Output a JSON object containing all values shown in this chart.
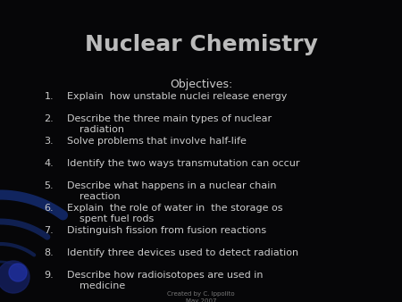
{
  "title": "Nuclear Chemistry",
  "objectives_header": "Objectives:",
  "objectives": [
    "Explain  how unstable nuclei release energy",
    "Describe the three main types of nuclear\n    radiation",
    "Solve problems that involve half-life",
    "Identify the two ways transmutation can occur",
    "Describe what happens in a nuclear chain\n    reaction",
    "Explain  the role of water in  the storage os\n    spent fuel rods",
    "Distinguish fission from fusion reactions",
    "Identify three devices used to detect radiation",
    "Describe how radioisotopes are used in\n    medicine"
  ],
  "footer": "Created by C. Ippolito\nMay 2007",
  "bg_color": "#060608",
  "text_color": "#cccccc",
  "title_color": "#bbbbbb",
  "title_fontsize": 18,
  "header_fontsize": 9,
  "body_fontsize": 8,
  "footer_fontsize": 5
}
